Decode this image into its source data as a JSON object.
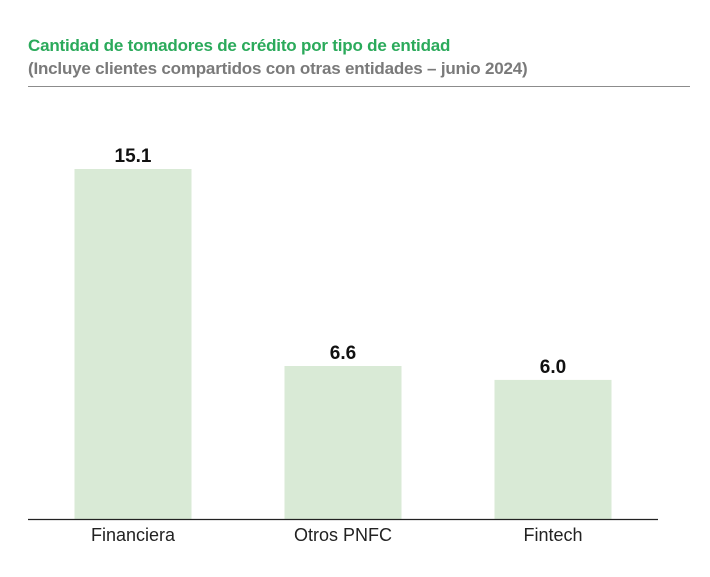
{
  "header": {
    "title": "Cantidad de tomadores de crédito por tipo de entidad",
    "subtitle": "(Incluye clientes compartidos con otras entidades – junio 2024)"
  },
  "colors": {
    "title": "#2BAA5B",
    "subtitle": "#7A7A7A",
    "bar": "#D9EAD6",
    "axis": "#222222"
  },
  "chart_data": {
    "type": "bar",
    "title": "Cantidad de tomadores de crédito por tipo de entidad",
    "subtitle": "(Incluye clientes compartidos con otras entidades – junio 2024)",
    "categories": [
      "Financiera",
      "Otros PNFC",
      "Fintech"
    ],
    "values": [
      15.1,
      6.6,
      6.0
    ],
    "value_labels": [
      "15.1",
      "6.6",
      "6.0"
    ],
    "xlabel": "",
    "ylabel": "",
    "ylim": [
      0,
      15.1
    ],
    "grid": false,
    "legend": "none"
  }
}
